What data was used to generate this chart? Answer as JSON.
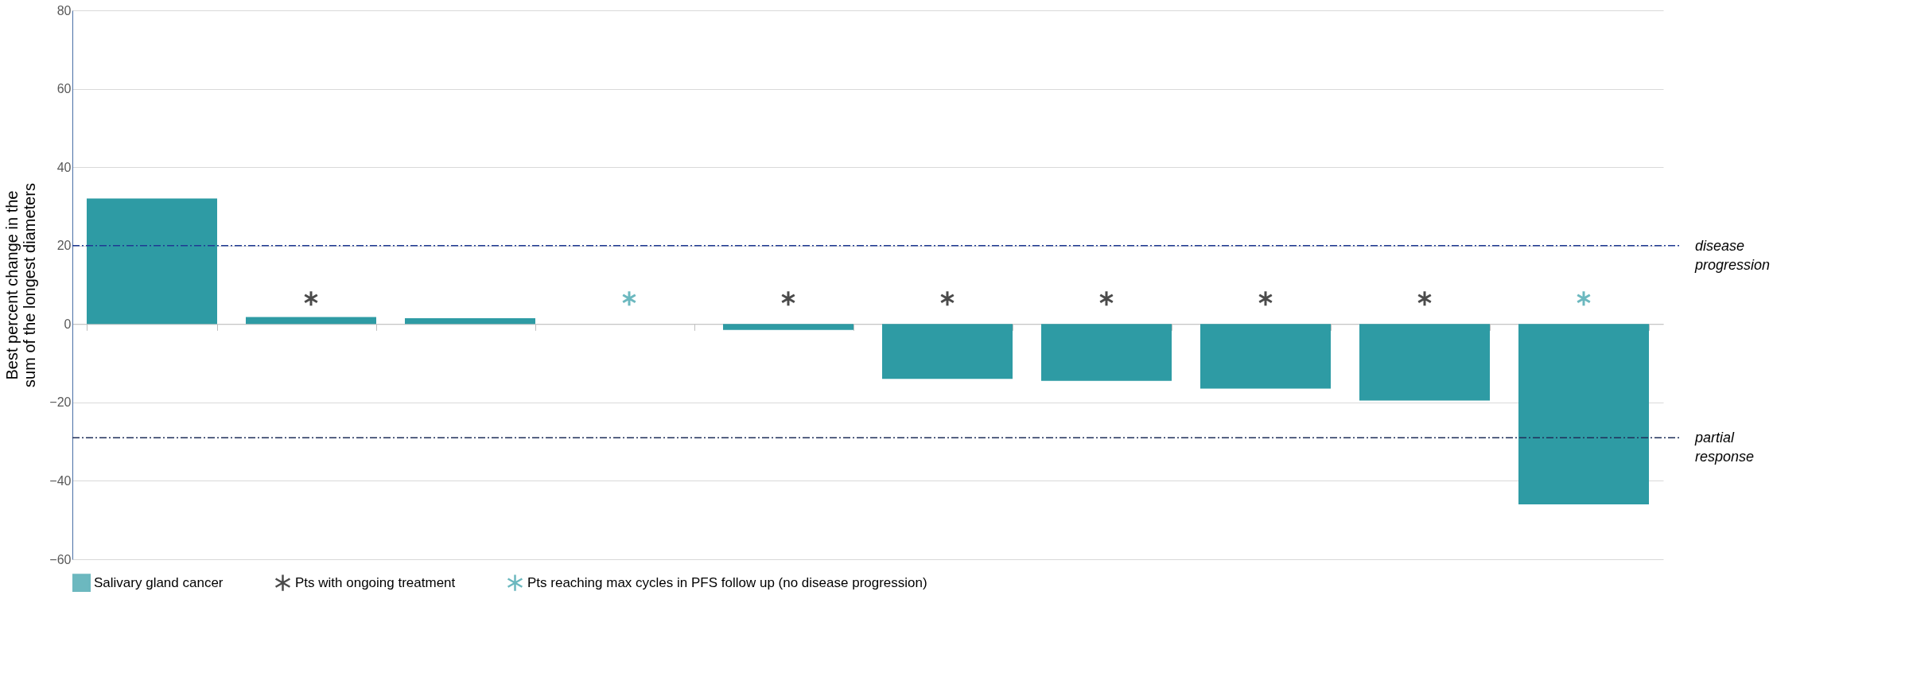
{
  "chart_data": {
    "type": "bar",
    "ylabel": "Best percent change in the\nsum of the longest diameters",
    "categories": [
      null,
      null,
      null,
      null,
      null,
      null,
      null,
      null,
      null,
      null
    ],
    "series": [
      {
        "name": "Salivary gland cancer",
        "color": "#2e9ba4",
        "values": [
          32,
          1.8,
          1.5,
          0,
          -1.5,
          -14,
          -14.5,
          -16.5,
          -19.5,
          -46
        ]
      },
      {
        "name": "Pts with ongoing treatment",
        "color": "#000000",
        "type": "scatter",
        "values": [
          null,
          6.5,
          null,
          null,
          6.5,
          6.5,
          6.5,
          6.5,
          6.5,
          null
        ]
      },
      {
        "name": "Pts reaching max cycles in PFS follow up (no disease progression)",
        "color": "#2e9ba4",
        "type": "scatter",
        "values": [
          null,
          null,
          null,
          6.5,
          null,
          null,
          null,
          null,
          null,
          6.5
        ]
      }
    ],
    "ylim": [
      -60,
      80
    ],
    "yticks": [
      -60,
      -40,
      -20,
      0,
      20,
      40,
      60,
      80
    ],
    "grid": "y",
    "legend": "bottom",
    "marker": "cross",
    "tick_labels": "y",
    "ref_lines": [
      {
        "axis": "y",
        "value": 20,
        "label": "disease\nprogression",
        "color": "#1f3a93",
        "line_style": "dashdot"
      },
      {
        "axis": "y",
        "value": -29,
        "label": "partial\nresponse",
        "color": "#1f2f5a",
        "line_style": "dashdot"
      }
    ]
  }
}
